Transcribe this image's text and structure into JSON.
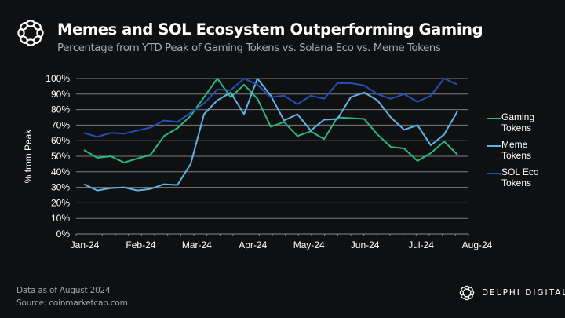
{
  "header": {
    "title": "Memes and SOL Ecosystem Outperforming Gaming",
    "subtitle": "Percentage from YTD Peak of Gaming Tokens vs. Solana Eco vs. Meme Tokens",
    "logo_icon": "delphi-knot-icon"
  },
  "footer": {
    "note": "Data as of August 2024",
    "source": "Source: coinmarketcap.com",
    "brand": "DELPHI DIGITAL",
    "brand_icon": "delphi-knot-icon"
  },
  "chart_data": {
    "type": "line",
    "title": "Memes and SOL Ecosystem Outperforming Gaming",
    "subtitle": "Percentage from YTD Peak of Gaming Tokens vs. Solana Eco vs. Meme Tokens",
    "xlabel": "",
    "ylabel": "% from Peak",
    "ylim": [
      0,
      100
    ],
    "yticks": [
      0,
      10,
      20,
      30,
      40,
      50,
      60,
      70,
      80,
      90,
      100
    ],
    "ytick_labels": [
      "0%",
      "10%",
      "20%",
      "30%",
      "40%",
      "50%",
      "60%",
      "70%",
      "80%",
      "90%",
      "100%"
    ],
    "x_tick_labels": [
      "Jan-24",
      "Feb-24",
      "Mar-24",
      "Apr-24",
      "May-24",
      "Jun-24",
      "Jul-24",
      "Aug-24"
    ],
    "x_points": 29,
    "x_frequency": "weekly",
    "grid": true,
    "legend_position": "right",
    "series": [
      {
        "name": "Gaming Tokens",
        "color": "#2bb77b",
        "values": [
          54,
          49,
          50,
          46,
          48.5,
          51,
          63,
          68,
          76,
          88,
          100,
          88,
          96,
          87,
          69,
          72,
          63,
          66,
          61,
          75,
          74.5,
          74,
          64,
          56,
          55,
          47,
          52,
          59.5,
          51
        ]
      },
      {
        "name": "Meme Tokens",
        "color": "#5fb4e6",
        "values": [
          32,
          28,
          29.5,
          30,
          28,
          29,
          32,
          31.5,
          45,
          77,
          86,
          91,
          77,
          100,
          89,
          73,
          77,
          66.5,
          73.5,
          74,
          88,
          91,
          86,
          75,
          67,
          70,
          57,
          64,
          79
        ]
      },
      {
        "name": "SOL Eco Tokens",
        "color": "#2251b5",
        "values": [
          65,
          62.5,
          65,
          64.5,
          66.5,
          68.5,
          73,
          72,
          78,
          84,
          93,
          92.5,
          100,
          96,
          88,
          89,
          83.5,
          89,
          87,
          97,
          97,
          95.5,
          90,
          87,
          90,
          85,
          89,
          100,
          96
        ]
      }
    ]
  }
}
